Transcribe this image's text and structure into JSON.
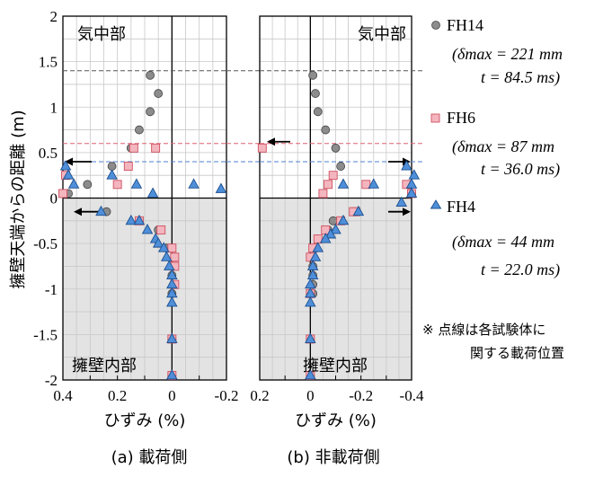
{
  "ylabel": "擁壁天端からの距離 (m)",
  "y_ticks": [
    "2",
    "1.5",
    "1",
    "0.5",
    "0",
    "-0.5",
    "-1",
    "-1.5",
    "-2"
  ],
  "legend": [
    {
      "name": "FH14",
      "line1": "(δmax = 221 mm",
      "line2": "t = 84.5 ms)",
      "color": "#8c8c8c",
      "marker": "circle"
    },
    {
      "name": "FH6",
      "line1": "(δmax = 87 mm",
      "line2": "t = 36.0 ms)",
      "color": "#f3b6bf",
      "marker": "square"
    },
    {
      "name": "FH4",
      "line1": "(δmax = 44 mm",
      "line2": "t = 22.0 ms)",
      "color": "#4f8fd9",
      "marker": "triangle"
    }
  ],
  "note": {
    "line1": "※ 点線は各試験体に",
    "line2": "関する載荷位置"
  },
  "chart_data": [
    {
      "type": "scatter",
      "id": "a",
      "caption": "(a) 載荷側",
      "xlabel": "ひずみ (%)",
      "x_ticks": [
        "0.4",
        "0.2",
        "0",
        "-0.2"
      ],
      "xlim": [
        0.4,
        -0.2
      ],
      "ylim": [
        -2,
        2
      ],
      "region_top_label": "気中部",
      "region_bottom_label": "擁壁内部",
      "loading_positions": {
        "FH14": 1.4,
        "FH6": 0.6,
        "FH4": 0.4
      },
      "series": [
        {
          "name": "FH14",
          "points": [
            [
              0.38,
              0.05
            ],
            [
              0.31,
              0.15
            ],
            [
              0.22,
              0.35
            ],
            [
              0.15,
              0.55
            ],
            [
              0.12,
              0.75
            ],
            [
              0.08,
              0.95
            ],
            [
              0.05,
              1.15
            ],
            [
              0.08,
              1.35
            ],
            [
              0.24,
              -0.15
            ],
            [
              0.05,
              -0.35
            ],
            [
              0.02,
              -0.55
            ],
            [
              0.0,
              -0.85
            ],
            [
              0.0,
              -1.05
            ],
            [
              0.0,
              -1.55
            ],
            [
              0.0,
              -1.95
            ]
          ]
        },
        {
          "name": "FH6",
          "points": [
            [
              0.4,
              0.05
            ],
            [
              0.39,
              0.25
            ],
            [
              0.2,
              0.15
            ],
            [
              0.16,
              0.35
            ],
            [
              0.14,
              0.55
            ],
            [
              0.06,
              0.55
            ],
            [
              0.12,
              -0.25
            ],
            [
              0.04,
              -0.35
            ],
            [
              0.0,
              -0.55
            ],
            [
              -0.01,
              -0.65
            ],
            [
              -0.01,
              -0.75
            ],
            [
              -0.01,
              -0.95
            ],
            [
              0.0,
              -1.55
            ],
            [
              0.0,
              -1.95
            ]
          ]
        },
        {
          "name": "FH4",
          "points": [
            [
              0.39,
              0.35
            ],
            [
              0.38,
              0.25
            ],
            [
              0.36,
              0.15
            ],
            [
              0.22,
              0.25
            ],
            [
              0.13,
              0.15
            ],
            [
              0.07,
              0.05
            ],
            [
              -0.08,
              0.15
            ],
            [
              -0.18,
              0.1
            ],
            [
              0.26,
              -0.15
            ],
            [
              0.15,
              -0.25
            ],
            [
              0.12,
              -0.25
            ],
            [
              0.09,
              -0.35
            ],
            [
              0.06,
              -0.45
            ],
            [
              0.05,
              -0.5
            ],
            [
              0.03,
              -0.55
            ],
            [
              0.02,
              -0.65
            ],
            [
              0.01,
              -0.75
            ],
            [
              0.0,
              -0.85
            ],
            [
              0.0,
              -0.95
            ],
            [
              0.0,
              -1.05
            ],
            [
              0.0,
              -1.15
            ],
            [
              0.0,
              -1.55
            ],
            [
              0.0,
              -1.95
            ]
          ]
        }
      ]
    },
    {
      "type": "scatter",
      "id": "b",
      "caption": "(b) 非載荷側",
      "xlabel": "ひずみ (%)",
      "x_ticks": [
        "0.2",
        "0",
        "-0.2",
        "-0.4"
      ],
      "xlim": [
        0.2,
        -0.4
      ],
      "ylim": [
        -2,
        2
      ],
      "region_top_label": "気中部",
      "region_bottom_label": "擁壁内部",
      "loading_positions": {
        "FH14": 1.4,
        "FH6": 0.6,
        "FH4": 0.4
      },
      "series": [
        {
          "name": "FH14",
          "points": [
            [
              -0.01,
              1.35
            ],
            [
              -0.02,
              1.15
            ],
            [
              -0.03,
              0.95
            ],
            [
              -0.06,
              0.75
            ],
            [
              -0.1,
              0.55
            ],
            [
              -0.12,
              0.35
            ],
            [
              -0.39,
              0.15
            ],
            [
              -0.4,
              0.05
            ],
            [
              -0.09,
              -0.25
            ],
            [
              -0.07,
              -0.35
            ],
            [
              -0.03,
              -0.45
            ],
            [
              -0.02,
              -0.55
            ],
            [
              -0.01,
              -0.65
            ],
            [
              -0.01,
              -0.75
            ],
            [
              -0.01,
              -0.85
            ],
            [
              -0.01,
              -0.95
            ],
            [
              -0.01,
              -1.05
            ],
            [
              0.0,
              -1.55
            ],
            [
              0.0,
              -1.95
            ]
          ]
        },
        {
          "name": "FH6",
          "points": [
            [
              0.19,
              0.55
            ],
            [
              -0.09,
              0.25
            ],
            [
              -0.07,
              0.15
            ],
            [
              -0.05,
              0.05
            ],
            [
              -0.22,
              0.15
            ],
            [
              -0.4,
              0.05
            ],
            [
              -0.38,
              0.15
            ],
            [
              -0.18,
              -0.15
            ],
            [
              -0.17,
              -0.15
            ],
            [
              -0.12,
              -0.25
            ],
            [
              -0.06,
              -0.35
            ],
            [
              -0.03,
              -0.45
            ],
            [
              -0.01,
              -0.55
            ],
            [
              0.0,
              -0.65
            ],
            [
              0.0,
              -1.05
            ],
            [
              0.0,
              -1.55
            ],
            [
              0.0,
              -1.95
            ]
          ]
        },
        {
          "name": "FH4",
          "points": [
            [
              -0.38,
              0.35
            ],
            [
              -0.41,
              0.25
            ],
            [
              -0.4,
              0.15
            ],
            [
              -0.4,
              0.05
            ],
            [
              -0.36,
              -0.05
            ],
            [
              -0.25,
              0.15
            ],
            [
              -0.13,
              0.15
            ],
            [
              -0.19,
              -0.15
            ],
            [
              -0.13,
              -0.25
            ],
            [
              -0.1,
              -0.35
            ],
            [
              -0.08,
              -0.4
            ],
            [
              -0.06,
              -0.45
            ],
            [
              -0.03,
              -0.55
            ],
            [
              -0.02,
              -0.65
            ],
            [
              -0.01,
              -0.75
            ],
            [
              -0.01,
              -0.85
            ],
            [
              0.0,
              -0.95
            ],
            [
              0.0,
              -1.05
            ],
            [
              0.0,
              -1.15
            ],
            [
              0.0,
              -1.55
            ],
            [
              0.0,
              -1.95
            ]
          ]
        }
      ]
    }
  ]
}
